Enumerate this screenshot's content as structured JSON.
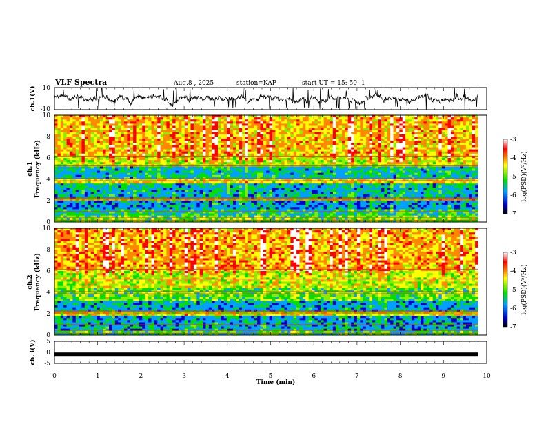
{
  "header": {
    "title": "VLF Spectra",
    "date": "Aug.8 , 2025",
    "station": "station=KAP",
    "start": "start UT = 15: 50: 1"
  },
  "colors": {
    "waveform": "#000000",
    "cmap": [
      "#000000",
      "#0000cc",
      "#00a0ff",
      "#00e000",
      "#88ee00",
      "#ffff00",
      "#ff8800",
      "#ff0000",
      "#ffffff"
    ]
  },
  "chart_data": [
    {
      "type": "line",
      "id": "ch1_waveform",
      "ylabel": "ch.1(V)",
      "ylim": [
        -10,
        10
      ],
      "ytick_labels": [
        "10",
        "-10"
      ],
      "xlim": [
        0,
        10
      ],
      "description_series": {
        "name": "ch.1",
        "x_range_min": [
          0,
          9.8
        ],
        "typical_level_V": 0,
        "spread_V": 6
      }
    },
    {
      "type": "heatmap",
      "id": "ch1_spectrogram",
      "ylabel": "ch.1",
      "ylabel2": "Frequency (kHz)",
      "ylim": [
        0,
        10
      ],
      "ytick_labels": [
        "0",
        "2",
        "4",
        "6",
        "8",
        "10"
      ],
      "xlim": [
        0,
        10
      ],
      "colorbar": {
        "label": "log(PSD)(V²/Hz)",
        "range": [
          -7,
          -3
        ],
        "tick_labels": [
          "-3",
          "-4",
          "-5",
          "-6",
          "-7"
        ]
      },
      "bands_kHz": [
        {
          "from": 0,
          "to": 0.6,
          "level": -4.8
        },
        {
          "from": 0.6,
          "to": 1.2,
          "level": -5.2
        },
        {
          "from": 1.2,
          "to": 2.0,
          "level": -5.6
        },
        {
          "from": 2.0,
          "to": 2.3,
          "level": -4.2
        },
        {
          "from": 2.3,
          "to": 3.6,
          "level": -5.4
        },
        {
          "from": 3.6,
          "to": 4.1,
          "level": -4.3
        },
        {
          "from": 4.1,
          "to": 5.2,
          "level": -5.3
        },
        {
          "from": 5.2,
          "to": 6.2,
          "level": -4.4
        },
        {
          "from": 6.2,
          "to": 10,
          "level": -4.0
        }
      ]
    },
    {
      "type": "heatmap",
      "id": "ch2_spectrogram",
      "ylabel": "ch.2",
      "ylabel2": "Frequency (kHz)",
      "ylim": [
        0,
        10
      ],
      "ytick_labels": [
        "0",
        "2",
        "4",
        "6",
        "8",
        "10"
      ],
      "xlim": [
        0,
        10
      ],
      "colorbar": {
        "label": "log(PSD)(V²/Hz)",
        "range": [
          -7,
          -3
        ],
        "tick_labels": [
          "-3",
          "-4",
          "-5",
          "-6",
          "-7"
        ]
      },
      "bands_kHz": [
        {
          "from": 0,
          "to": 0.5,
          "level": -5.0
        },
        {
          "from": 0.5,
          "to": 1.8,
          "level": -5.5
        },
        {
          "from": 1.8,
          "to": 2.2,
          "level": -4.3
        },
        {
          "from": 2.2,
          "to": 3.3,
          "level": -5.5
        },
        {
          "from": 3.3,
          "to": 4.5,
          "level": -4.8
        },
        {
          "from": 4.5,
          "to": 6.0,
          "level": -4.4
        },
        {
          "from": 6.0,
          "to": 10,
          "level": -3.9
        }
      ]
    },
    {
      "type": "line",
      "id": "ch3_waveform",
      "ylabel": "ch.3(V)",
      "ylim": [
        -5,
        5
      ],
      "ytick_labels": [
        "5",
        "0",
        "-5"
      ],
      "xlim": [
        0,
        10
      ],
      "xlabel": "Time (min)",
      "xtick_labels": [
        "0",
        "1",
        "2",
        "3",
        "4",
        "5",
        "6",
        "7",
        "8",
        "9",
        "10"
      ],
      "series": [
        {
          "name": "ch.3",
          "x": [
            0,
            9.8
          ],
          "y": [
            -1,
            -1
          ]
        }
      ]
    }
  ]
}
